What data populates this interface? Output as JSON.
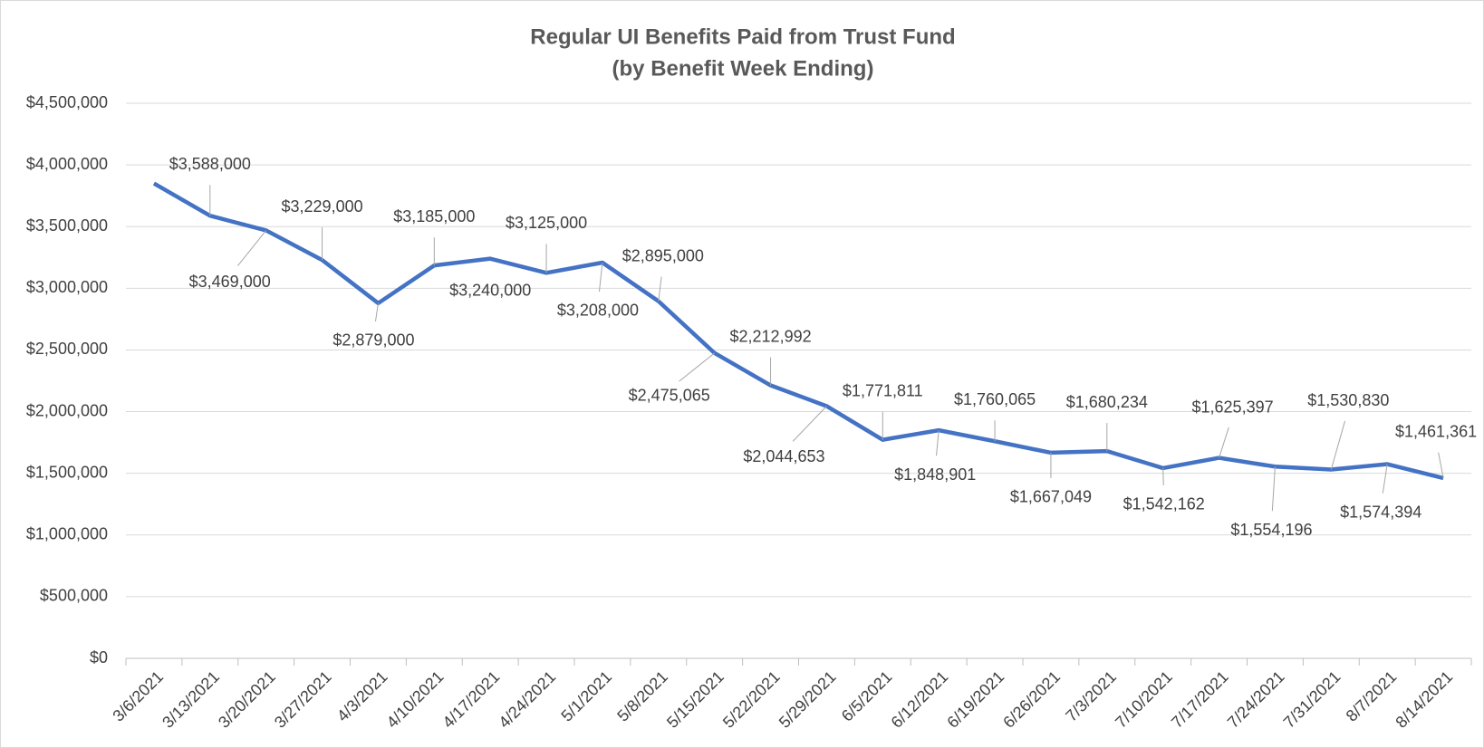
{
  "chart_data": {
    "type": "line",
    "title": "Regular UI Benefits Paid from Trust Fund",
    "subtitle": "(by Benefit Week Ending)",
    "categories": [
      "3/6/2021",
      "3/13/2021",
      "3/20/2021",
      "3/27/2021",
      "4/3/2021",
      "4/10/2021",
      "4/17/2021",
      "4/24/2021",
      "5/1/2021",
      "5/8/2021",
      "5/15/2021",
      "5/22/2021",
      "5/29/2021",
      "6/5/2021",
      "6/12/2021",
      "6/19/2021",
      "6/26/2021",
      "7/3/2021",
      "7/10/2021",
      "7/17/2021",
      "7/24/2021",
      "7/31/2021",
      "8/7/2021",
      "8/14/2021"
    ],
    "values": [
      3850000,
      3588000,
      3469000,
      3229000,
      2879000,
      3185000,
      3240000,
      3125000,
      3208000,
      2895000,
      2475065,
      2212992,
      2044653,
      1771811,
      1848901,
      1760065,
      1667049,
      1680234,
      1542162,
      1625397,
      1554196,
      1530830,
      1574394,
      1461361
    ],
    "value_labels": [
      null,
      "$3,588,000",
      "$3,469,000",
      "$3,229,000",
      "$2,879,000",
      "$3,185,000",
      "$3,240,000",
      "$3,125,000",
      "$3,208,000",
      "$2,895,000",
      "$2,475,065",
      "$2,212,992",
      "$2,044,653",
      "$1,771,811",
      "$1,848,901",
      "$1,760,065",
      "$1,667,049",
      "$1,680,234",
      "$1,542,162",
      "$1,625,397",
      "$1,554,196",
      "$1,530,830",
      "$1,574,394",
      "$1,461,361"
    ],
    "color": "#4472c4",
    "ylim": [
      0,
      4500000
    ],
    "yticks": [
      {
        "value": 0,
        "label": "$0"
      },
      {
        "value": 500000,
        "label": "$500,000"
      },
      {
        "value": 1000000,
        "label": "$1,000,000"
      },
      {
        "value": 1500000,
        "label": "$1,500,000"
      },
      {
        "value": 2000000,
        "label": "$2,000,000"
      },
      {
        "value": 2500000,
        "label": "$2,500,000"
      },
      {
        "value": 3000000,
        "label": "$3,000,000"
      },
      {
        "value": 3500000,
        "label": "$3,500,000"
      },
      {
        "value": 4000000,
        "label": "$4,000,000"
      },
      {
        "value": 4500000,
        "label": "$4,500,000"
      }
    ],
    "grid": true
  }
}
